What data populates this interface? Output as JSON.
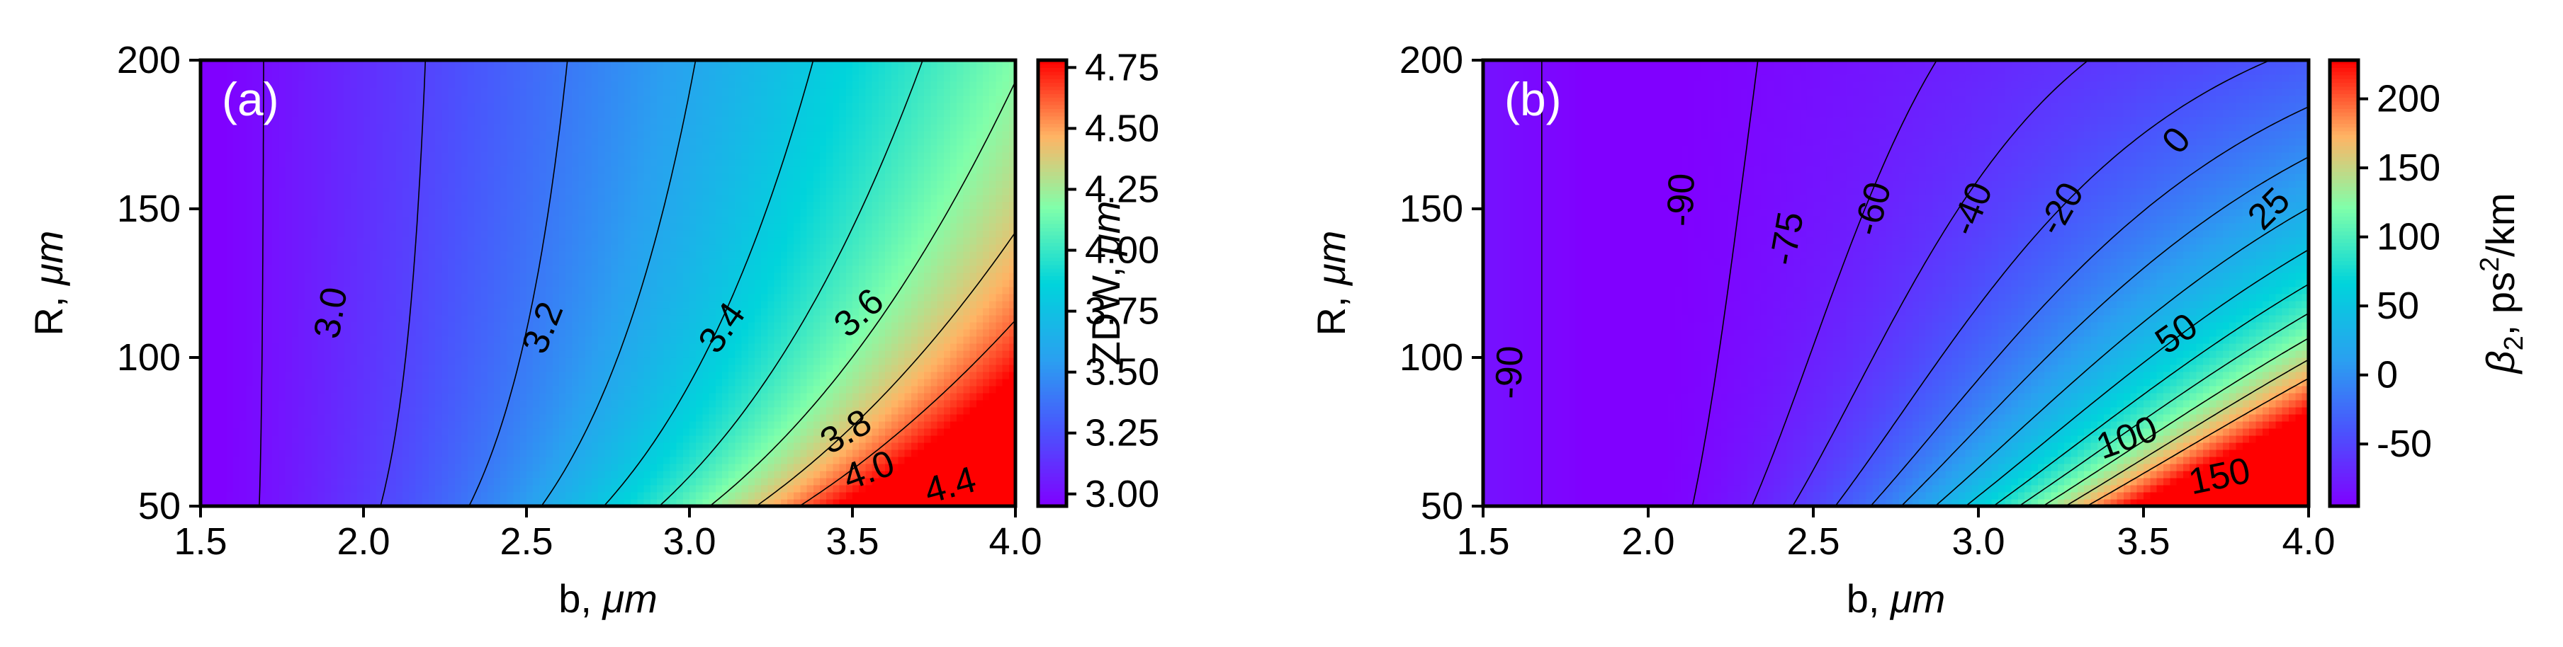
{
  "chart_data": [
    {
      "type": "heatmap",
      "panel_label": "(a)",
      "x": {
        "label_text": "b, ",
        "label_unit": "μm",
        "range": [
          1.5,
          4.0
        ],
        "ticks": [
          1.5,
          2.0,
          2.5,
          3.0,
          3.5,
          4.0
        ],
        "tick_labels": [
          "1.5",
          "2.0",
          "2.5",
          "3.0",
          "3.5",
          "4.0"
        ]
      },
      "y": {
        "label_text": "R, ",
        "label_unit": "μm",
        "range": [
          50,
          200
        ],
        "ticks": [
          50,
          100,
          150,
          200
        ],
        "tick_labels": [
          "50",
          "100",
          "150",
          "200"
        ]
      },
      "colorbar": {
        "label_text": "ZDW, ",
        "label_unit": "μm",
        "range": [
          2.95,
          4.78
        ],
        "ticks": [
          3.0,
          3.25,
          3.5,
          3.75,
          4.0,
          4.25,
          4.5,
          4.75
        ],
        "tick_labels": [
          "3.00",
          "3.25",
          "3.50",
          "3.75",
          "4.00",
          "4.25",
          "4.50",
          "4.75"
        ]
      },
      "field_model": {
        "base": 2.93,
        "b_coeff": 0.35,
        "r_coeff": 0.045,
        "power": 2.2
      },
      "contours": [
        {
          "level": 3.0,
          "label": "3.0",
          "label_at": [
            1.9,
            115
          ],
          "label_angle": -80
        },
        {
          "level": 3.2,
          "label": "3.2",
          "label_at": [
            2.55,
            110
          ],
          "label_angle": -68
        },
        {
          "level": 3.4,
          "label": "3.4",
          "label_at": [
            3.1,
            110
          ],
          "label_angle": -55
        },
        {
          "level": 3.6,
          "label": "3.6",
          "label_at": [
            3.52,
            115
          ],
          "label_angle": -42
        },
        {
          "level": 3.8,
          "label": "3.8",
          "label_at": [
            3.48,
            75
          ],
          "label_angle": -30
        },
        {
          "level": 4.0,
          "label": "4.0",
          "label_at": [
            3.55,
            62
          ],
          "label_angle": -20
        },
        {
          "level": 4.2,
          "label": "",
          "label_at": null,
          "label_angle": 0
        },
        {
          "level": 4.4,
          "label": "4.4",
          "label_at": [
            3.8,
            57
          ],
          "label_angle": -15
        },
        {
          "level": 4.6,
          "label": "",
          "label_at": null,
          "label_angle": 0
        }
      ]
    },
    {
      "type": "heatmap",
      "panel_label": "(b)",
      "x": {
        "label_text": "b, ",
        "label_unit": "μm",
        "range": [
          1.5,
          4.0
        ],
        "ticks": [
          1.5,
          2.0,
          2.5,
          3.0,
          3.5,
          4.0
        ],
        "tick_labels": [
          "1.5",
          "2.0",
          "2.5",
          "3.0",
          "3.5",
          "4.0"
        ]
      },
      "y": {
        "label_text": "R, ",
        "label_unit": "μm",
        "range": [
          50,
          200
        ],
        "ticks": [
          50,
          100,
          150,
          200
        ],
        "tick_labels": [
          "50",
          "100",
          "150",
          "200"
        ]
      },
      "colorbar": {
        "label_html_parts": [
          "β",
          "2",
          ", ps",
          "2",
          "/km"
        ],
        "range": [
          -95,
          228
        ],
        "ticks": [
          -50,
          0,
          50,
          100,
          150,
          200
        ],
        "tick_labels": [
          "-50",
          "0",
          "50",
          "100",
          "150",
          "200"
        ]
      },
      "field_model": {
        "base": -98,
        "b_coeff": 17,
        "b_power": 1.3,
        "r_coeff": 5.5,
        "power": 2.2,
        "b_ref": 1.9
      },
      "contours": [
        {
          "level": -90,
          "label": "-90",
          "label_at": [
            1.58,
            95
          ],
          "label_angle": -88
        },
        {
          "level": -90,
          "label": "-90",
          "label_at": [
            2.1,
            153
          ],
          "label_angle": -88,
          "branch": "right"
        },
        {
          "level": -75,
          "label": "-75",
          "label_at": [
            2.42,
            140
          ],
          "label_angle": -80
        },
        {
          "level": -60,
          "label": "-60",
          "label_at": [
            2.68,
            150
          ],
          "label_angle": -75
        },
        {
          "level": -40,
          "label": "-40",
          "label_at": [
            2.98,
            150
          ],
          "label_angle": -68
        },
        {
          "level": -20,
          "label": "-20",
          "label_at": [
            3.25,
            150
          ],
          "label_angle": -60
        },
        {
          "level": 0,
          "label": "0",
          "label_at": [
            3.6,
            173
          ],
          "label_angle": -50
        },
        {
          "level": 25,
          "label": "25",
          "label_at": [
            3.88,
            150
          ],
          "label_angle": -45
        },
        {
          "level": 50,
          "label": "50",
          "label_at": [
            3.6,
            108
          ],
          "label_angle": -35
        },
        {
          "level": 75,
          "label": "",
          "label_at": null,
          "label_angle": 0
        },
        {
          "level": 100,
          "label": "100",
          "label_at": [
            3.45,
            73
          ],
          "label_angle": -20
        },
        {
          "level": 125,
          "label": "",
          "label_at": null,
          "label_angle": 0
        },
        {
          "level": 150,
          "label": "150",
          "label_at": [
            3.73,
            60
          ],
          "label_angle": -12
        },
        {
          "level": 175,
          "label": "",
          "label_at": null,
          "label_angle": 0
        }
      ]
    }
  ]
}
